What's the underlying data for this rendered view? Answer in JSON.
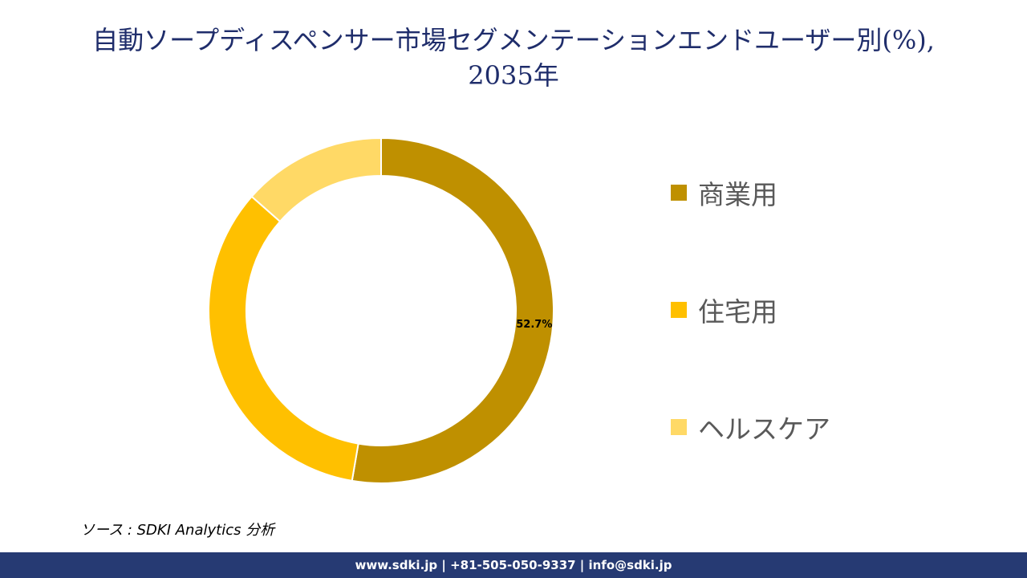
{
  "title": {
    "line1": "自動ソープディスペンサー市場セグメンテーションエンドユーザー別(%),",
    "line2": "2035年"
  },
  "chart_data": {
    "type": "pie",
    "subtype": "donut",
    "categories": [
      "商業用",
      "住宅用",
      "ヘルスケア"
    ],
    "values": [
      52.7,
      33.8,
      13.5
    ],
    "colors": [
      "#bf9000",
      "#ffc000",
      "#ffd966"
    ],
    "data_labels": [
      "52.7%",
      "",
      ""
    ],
    "legend_position": "right"
  },
  "legend": {
    "items": [
      {
        "label": "商業用",
        "color": "#bf9000"
      },
      {
        "label": "住宅用",
        "color": "#ffc000"
      },
      {
        "label": "ヘルスケア",
        "color": "#ffd966"
      }
    ]
  },
  "source": "ソース : SDKI Analytics 分析",
  "footer": "www.sdki.jp | +81-505-050-9337 | info@sdki.jp"
}
